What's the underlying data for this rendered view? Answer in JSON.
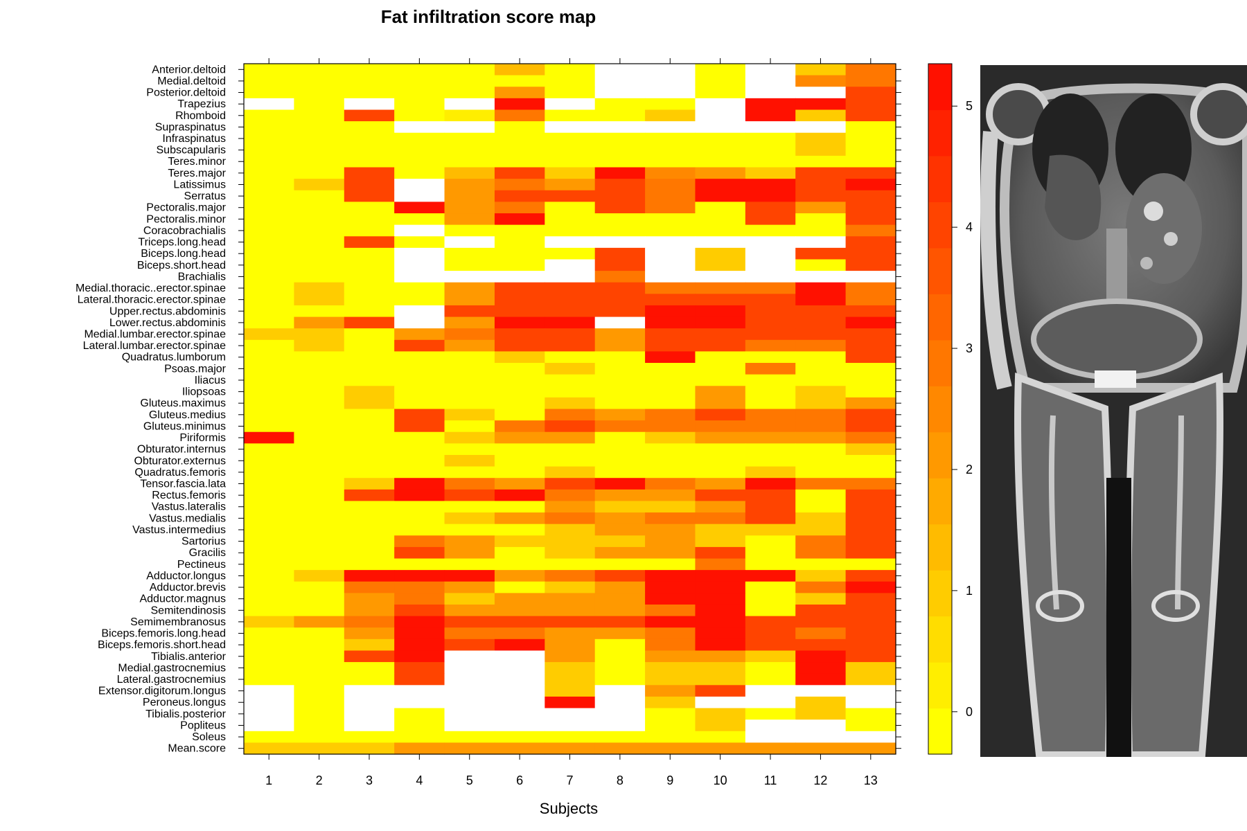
{
  "chart_data": {
    "type": "heatmap",
    "title": "Fat infiltration score map",
    "xlabel": "Subjects",
    "ylabel": "",
    "x": [
      "1",
      "2",
      "3",
      "4",
      "5",
      "6",
      "7",
      "8",
      "9",
      "10",
      "11",
      "12",
      "13"
    ],
    "rows": [
      "Anterior.deltoid",
      "Medial.deltoid",
      "Posterior.deltoid",
      "Trapezius",
      "Rhomboid",
      "Supraspinatus",
      "Infraspinatus",
      "Subscapularis",
      "Teres.minor",
      "Teres.major",
      "Latissimus",
      "Serratus",
      "Pectoralis.major",
      "Pectoralis.minor",
      "Coracobrachialis",
      "Triceps.long.head",
      "Biceps.long.head",
      "Biceps.short.head",
      "Brachialis",
      "Medial.thoracic..erector.spinae",
      "Lateral.thoracic.erector.spinae",
      "Upper.rectus.abdominis",
      "Lower.rectus.abdominis",
      "Medial.lumbar.erector.spinae",
      "Lateral.lumbar.erector.spinae",
      "Quadratus.lumborum",
      "Psoas.major",
      "Iliacus",
      "Iliopsoas",
      "Gluteus.maximus",
      "Gluteus.medius",
      "Gluteus.minimus",
      "Piriformis",
      "Obturator.internus",
      "Obturator.externus",
      "Quadratus.femoris",
      "Tensor.fascia.lata",
      "Rectus.femoris",
      "Vastus.lateralis",
      "Vastus.medialis",
      "Vastus.intermedius",
      "Sartorius",
      "Gracilis",
      "Pectineus",
      "Adductor.longus",
      "Adductor.brevis",
      "Adductor.magnus",
      "Semitendinosis",
      "Semimembranosus",
      "Biceps.femoris.long.head",
      "Biceps.femoris.short.head",
      "Tibialis.anterior",
      "Medial.gastrocnemius",
      "Lateral.gastrocnemius",
      "Extensor.digitorum.longus",
      "Peroneus.longus",
      "Tibialis.posterior",
      "Popliteus",
      "Soleus",
      "Mean.score"
    ],
    "values": [
      [
        0,
        0,
        0,
        0,
        0,
        1.5,
        0,
        null,
        null,
        0,
        null,
        1,
        3
      ],
      [
        0,
        0,
        0,
        0,
        0,
        0,
        0,
        null,
        null,
        0,
        null,
        2.5,
        3
      ],
      [
        0,
        0,
        0,
        0,
        0,
        2,
        0,
        null,
        null,
        0,
        null,
        null,
        4
      ],
      [
        null,
        0,
        null,
        0,
        null,
        5,
        null,
        0,
        0,
        null,
        5,
        5,
        4
      ],
      [
        0,
        0,
        4,
        0,
        0.5,
        3,
        0,
        0,
        1,
        null,
        5,
        1,
        4
      ],
      [
        0,
        0,
        0,
        null,
        null,
        0,
        null,
        null,
        null,
        null,
        null,
        null,
        0
      ],
      [
        0,
        0,
        0,
        0,
        0,
        0,
        0,
        0,
        0,
        0,
        0,
        1,
        0
      ],
      [
        0,
        0,
        0,
        0,
        0,
        0,
        0,
        0,
        0,
        0,
        0,
        1,
        0
      ],
      [
        0,
        0,
        0,
        0,
        0,
        0,
        0,
        0,
        0,
        0,
        0,
        0,
        0
      ],
      [
        0,
        0,
        4,
        0,
        1.5,
        4,
        1,
        5,
        2.5,
        2,
        1,
        4,
        4
      ],
      [
        0,
        1,
        4,
        null,
        2,
        3,
        2,
        4,
        3,
        5,
        5,
        4,
        5
      ],
      [
        0,
        0,
        4,
        null,
        2,
        4,
        4,
        4,
        3,
        5,
        5,
        4,
        4
      ],
      [
        0,
        0,
        0,
        5,
        2,
        3,
        0,
        4,
        3,
        0,
        4,
        2,
        4
      ],
      [
        0,
        0,
        0,
        0,
        2,
        5,
        0,
        0,
        0,
        0,
        4,
        0,
        4
      ],
      [
        0,
        0,
        0,
        null,
        0,
        0,
        0,
        0,
        0,
        0,
        0,
        0,
        3
      ],
      [
        0,
        0,
        4,
        0,
        null,
        0,
        null,
        null,
        null,
        null,
        null,
        null,
        4
      ],
      [
        0,
        0,
        0,
        null,
        0,
        0,
        0,
        4,
        null,
        1,
        null,
        4,
        4
      ],
      [
        0,
        0,
        0,
        null,
        0,
        0,
        null,
        4,
        null,
        1,
        null,
        0,
        4
      ],
      [
        0,
        0,
        0,
        null,
        null,
        null,
        null,
        3,
        null,
        null,
        null,
        null,
        null
      ],
      [
        0,
        1,
        0,
        0,
        2,
        4,
        4,
        4,
        3,
        3,
        3,
        5,
        3
      ],
      [
        0,
        1,
        0,
        0,
        2,
        4,
        4,
        4,
        4,
        4,
        4,
        5,
        3
      ],
      [
        0,
        0,
        0,
        null,
        4,
        4,
        4,
        4,
        5,
        5,
        4,
        4,
        4
      ],
      [
        0,
        2,
        4,
        null,
        2,
        5,
        5,
        null,
        5,
        5,
        4,
        4,
        5
      ],
      [
        1,
        1,
        0,
        2,
        3,
        4,
        4,
        2,
        4,
        4,
        4,
        4,
        4
      ],
      [
        0,
        1,
        0,
        4,
        2,
        4,
        4,
        2,
        4,
        4,
        3,
        3,
        4
      ],
      [
        0,
        0,
        0,
        0,
        0,
        1,
        0,
        0,
        5,
        0,
        0,
        0,
        4
      ],
      [
        0,
        0,
        0,
        0,
        0,
        0,
        1,
        0,
        0,
        0,
        3,
        0,
        0
      ],
      [
        0,
        0,
        0,
        0,
        0,
        0,
        0,
        0,
        0,
        0,
        0,
        0,
        0
      ],
      [
        0,
        0,
        1,
        0,
        0,
        0,
        0,
        0,
        0,
        2,
        0,
        1,
        0
      ],
      [
        0,
        0,
        1,
        0,
        0,
        0,
        1,
        0,
        0,
        2,
        0,
        1,
        2
      ],
      [
        0,
        0,
        0,
        4,
        1,
        0,
        3,
        2,
        3,
        4,
        3,
        3,
        4
      ],
      [
        0,
        0,
        0,
        4,
        0,
        3,
        4,
        3,
        3,
        3,
        3,
        3,
        4
      ],
      [
        5,
        0,
        0,
        0,
        1,
        2,
        2,
        0,
        1,
        2,
        2,
        2,
        3
      ],
      [
        0,
        0,
        0,
        0,
        0,
        0,
        0,
        0,
        0,
        0,
        0,
        0,
        1
      ],
      [
        0,
        0,
        0,
        0,
        1,
        0,
        0,
        0,
        0,
        0,
        0,
        0,
        0
      ],
      [
        0,
        0,
        0,
        0,
        0,
        0,
        1,
        0,
        0,
        0,
        1,
        0,
        0
      ],
      [
        0,
        0,
        1,
        5,
        3,
        2,
        4,
        5,
        3,
        2,
        5,
        3,
        3
      ],
      [
        0,
        0,
        4,
        5,
        4,
        5,
        3,
        2,
        2,
        4,
        4,
        0,
        4
      ],
      [
        0,
        0,
        0,
        0,
        0,
        0,
        2,
        1,
        1,
        2,
        4,
        0,
        4
      ],
      [
        0,
        0,
        0,
        0,
        1,
        2,
        3,
        2,
        3,
        3,
        4,
        1,
        4
      ],
      [
        0,
        0,
        0,
        0,
        0,
        0,
        1,
        2,
        2,
        1,
        1,
        1,
        4
      ],
      [
        0,
        0,
        0,
        3,
        2,
        1,
        1,
        1,
        2,
        1,
        0,
        3,
        4
      ],
      [
        0,
        0,
        0,
        4,
        2,
        0,
        1,
        2,
        2,
        4,
        0,
        3,
        4
      ],
      [
        0,
        0,
        0,
        0,
        0,
        0,
        0,
        0,
        0,
        3,
        0,
        0,
        0
      ],
      [
        0,
        1,
        5,
        5,
        5,
        2,
        3,
        4,
        5,
        5,
        5,
        1,
        4
      ],
      [
        0,
        0,
        3,
        3,
        2,
        0,
        1,
        2,
        5,
        5,
        0,
        3,
        5
      ],
      [
        0,
        0,
        2,
        3,
        1,
        2,
        2,
        2,
        5,
        5,
        0,
        1,
        4
      ],
      [
        0,
        0,
        2,
        4,
        2,
        2,
        2,
        2,
        3,
        5,
        0,
        4,
        4
      ],
      [
        1,
        2,
        3,
        5,
        4,
        4,
        4,
        4,
        5,
        5,
        4,
        4,
        4
      ],
      [
        0,
        0,
        2,
        5,
        3,
        3,
        2,
        2,
        3,
        5,
        4,
        3,
        4
      ],
      [
        0,
        0,
        1,
        5,
        4,
        5,
        2,
        0,
        3,
        5,
        4,
        4,
        4
      ],
      [
        0,
        0,
        4,
        5,
        null,
        null,
        2,
        0,
        2,
        2,
        1,
        5,
        4
      ],
      [
        0,
        0,
        0,
        4,
        null,
        null,
        1,
        0,
        1,
        1,
        0,
        5,
        1
      ],
      [
        0,
        0,
        0,
        4,
        null,
        null,
        1,
        0,
        1,
        1,
        0,
        5,
        1
      ],
      [
        null,
        0,
        null,
        null,
        null,
        null,
        1,
        null,
        2,
        4,
        null,
        null,
        null
      ],
      [
        null,
        0,
        null,
        null,
        null,
        null,
        5,
        null,
        1,
        null,
        null,
        1,
        null
      ],
      [
        null,
        0,
        null,
        0,
        null,
        null,
        null,
        null,
        0,
        1,
        0,
        1,
        0
      ],
      [
        null,
        0,
        null,
        0,
        null,
        null,
        null,
        null,
        0,
        1,
        null,
        null,
        0
      ],
      [
        0,
        0,
        0,
        0,
        0,
        0,
        0,
        0,
        0,
        0,
        null,
        null,
        null
      ],
      [
        1,
        1,
        1,
        2,
        2,
        2,
        2,
        2,
        2,
        2,
        2,
        2,
        2
      ]
    ],
    "color_scale": {
      "min": 0,
      "max": 5,
      "ticks": [
        0,
        1,
        2,
        3,
        4,
        5
      ],
      "colors": [
        "#ffff00",
        "#ffee00",
        "#ffdd00",
        "#ffcc00",
        "#ffbb00",
        "#ffaa00",
        "#ff9900",
        "#ff8800",
        "#ff7700",
        "#ff6600",
        "#ff5500",
        "#ff4400",
        "#ff3300",
        "#ff2200",
        "#ff1100"
      ]
    },
    "legend": "right",
    "grid": false,
    "missing_color": "#ffffff"
  },
  "image_panel": {
    "description": "MRI"
  }
}
